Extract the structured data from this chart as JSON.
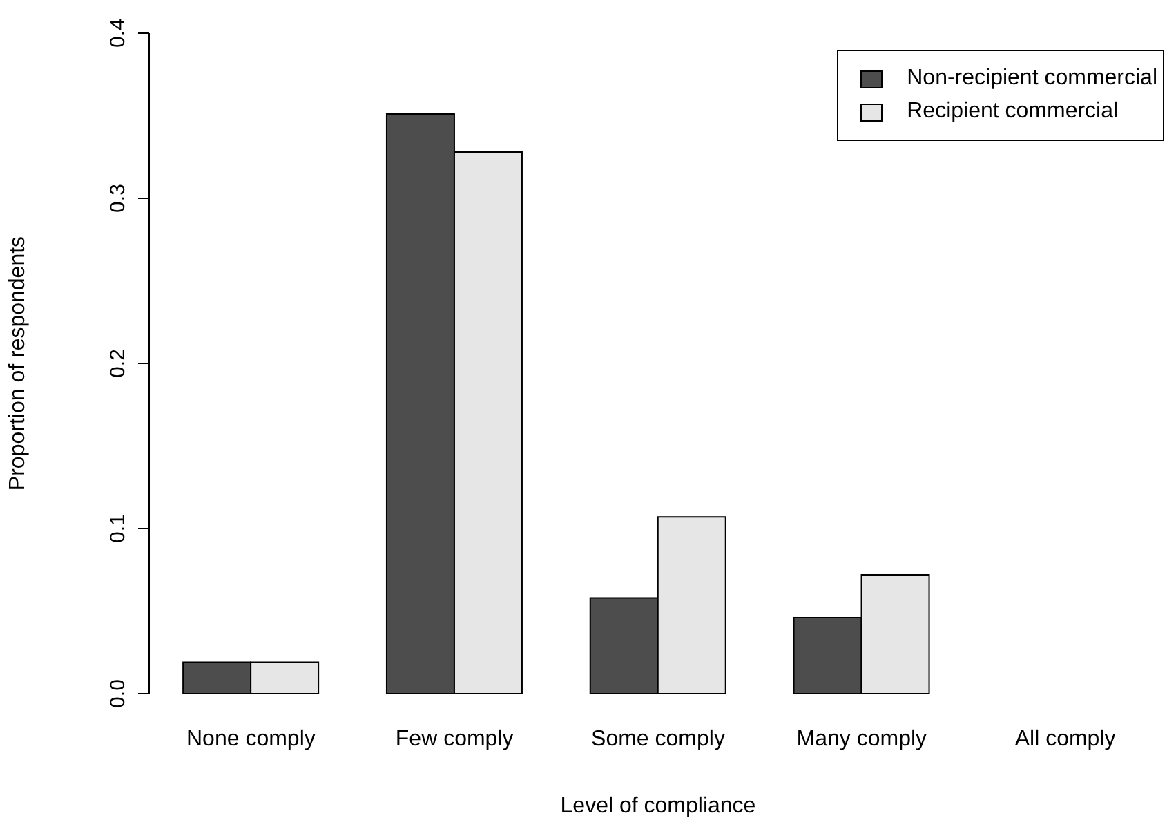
{
  "chart_data": {
    "type": "bar",
    "xlabel": "Level of compliance",
    "ylabel": "Proportion of respondents",
    "categories": [
      "None comply",
      "Few comply",
      "Some comply",
      "Many comply",
      "All comply"
    ],
    "series": [
      {
        "name": "Non-recipient commercial",
        "color": "#4d4d4d",
        "values": [
          0.019,
          0.351,
          0.058,
          0.046,
          0
        ]
      },
      {
        "name": "Recipient commercial",
        "color": "#e6e6e6",
        "values": [
          0.019,
          0.328,
          0.107,
          0.072,
          0
        ]
      }
    ],
    "ylim": [
      0,
      0.4
    ],
    "yticks": [
      {
        "value": 0,
        "label": "0.0"
      },
      0.1,
      0.2,
      0.3,
      0.4
    ],
    "grid": false,
    "legend": "top right"
  }
}
